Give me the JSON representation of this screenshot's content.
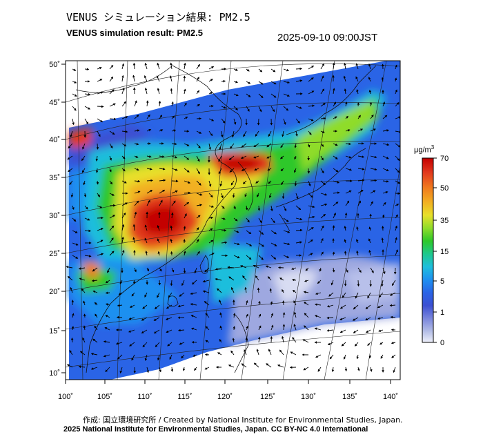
{
  "header": {
    "title_jp": "VENUS シミュレーション結果: PM2.5",
    "title_en": "VENUS simulation result: PM2.5",
    "timestamp": "2025-09-10 09:00JST"
  },
  "axes": {
    "lon_labels": [
      "100˚",
      "105˚",
      "110˚",
      "115˚",
      "120˚",
      "125˚",
      "130˚",
      "135˚",
      "140˚"
    ],
    "lat_labels": [
      "50˚",
      "45˚",
      "40˚",
      "35˚",
      "30˚",
      "25˚",
      "20˚",
      "15˚",
      "10˚"
    ]
  },
  "colorbar": {
    "unit_base": "μg/m",
    "unit_sup": "3",
    "tick_labels": [
      "70",
      "50",
      "35",
      "15",
      "5",
      "1",
      "0"
    ],
    "colors": [
      "#c40000",
      "#e23a1e",
      "#f07a1e",
      "#f2b022",
      "#e8e02a",
      "#8fdc2a",
      "#2ec82a",
      "#1ec88c",
      "#1ebedc",
      "#1e90f0",
      "#2a64e6",
      "#3c50d2",
      "#7a86dc",
      "#b4bee6",
      "#eef0fa"
    ]
  },
  "footer": {
    "credit_line1": "作成: 国立環境研究所 / Created by National Institute for Environmental Studies, Japan.",
    "credit_line2": "2025 National Institute for Environmental Studies, Japan. CC BY-NC 4.0 International"
  }
}
